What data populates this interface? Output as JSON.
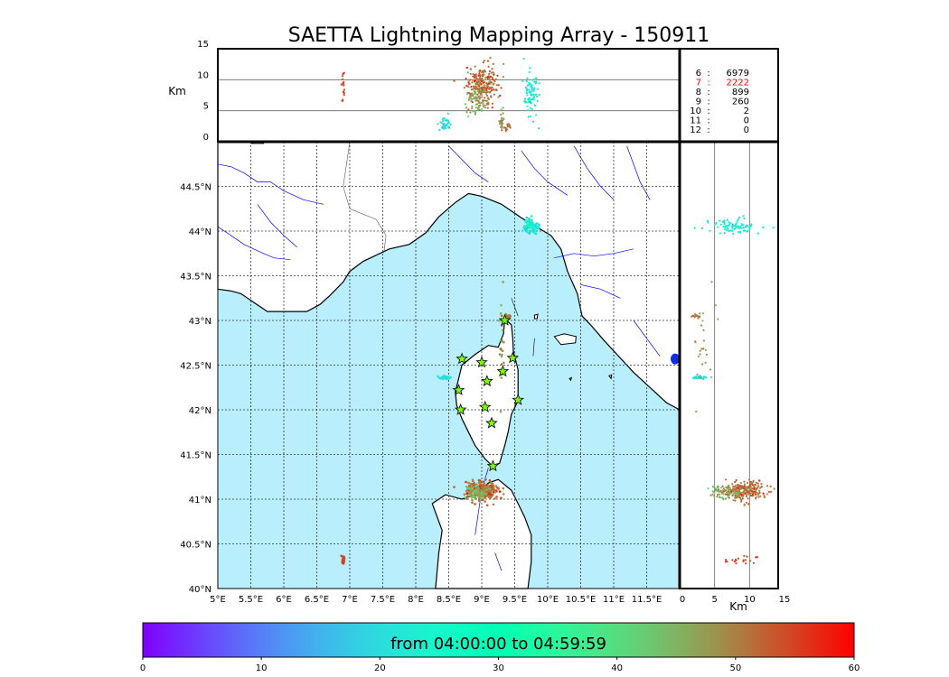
{
  "title": "SAETTA Lightning Mapping Array - 150911",
  "altitude_axis": {
    "label": "Km",
    "ticks": [
      "15",
      "10",
      "5",
      "0"
    ],
    "tick_values": [
      15,
      10,
      5,
      0
    ],
    "range": [
      0,
      15
    ]
  },
  "side_axis": {
    "label": "Km",
    "ticks": [
      "0",
      "5",
      "10",
      "15"
    ],
    "tick_values": [
      0,
      5,
      10,
      15
    ],
    "range": [
      0,
      15
    ]
  },
  "longitude_ticks": [
    "5°E",
    "5.5°E",
    "6°E",
    "6.5°E",
    "7°E",
    "7.5°E",
    "8°E",
    "8.5°E",
    "9°E",
    "9.5°E",
    "10°E",
    "10.5°E",
    "11°E",
    "11.5°E"
  ],
  "longitude_values": [
    5,
    5.5,
    6,
    6.5,
    7,
    7.5,
    8,
    8.5,
    9,
    9.5,
    10,
    10.5,
    11,
    11.5
  ],
  "latitude_ticks": [
    "44.5°N",
    "44°N",
    "43.5°N",
    "43°N",
    "42.5°N",
    "42°N",
    "41.5°N",
    "41°N",
    "40.5°N",
    "40°N"
  ],
  "latitude_values": [
    44.5,
    44,
    43.5,
    43,
    42.5,
    42,
    41.5,
    41,
    40.5,
    40
  ],
  "map_extent": {
    "lon": [
      5,
      12
    ],
    "lat": [
      40,
      45
    ]
  },
  "station_counts": [
    {
      "stations": "6",
      "sep": ":",
      "count": "6979",
      "color": "#000000"
    },
    {
      "stations": "7",
      "sep": ":",
      "count": "2222",
      "color": "#ff0000"
    },
    {
      "stations": "8",
      "sep": ":",
      "count": "899",
      "color": "#000000"
    },
    {
      "stations": "9",
      "sep": ":",
      "count": "260",
      "color": "#000000"
    },
    {
      "stations": "10",
      "sep": ":",
      "count": "2",
      "color": "#000000"
    },
    {
      "stations": "11",
      "sep": ":",
      "count": "0",
      "color": "#000000"
    },
    {
      "stations": "12",
      "sep": ":",
      "count": "0",
      "color": "#000000"
    }
  ],
  "colorbar": {
    "label": "from 04:00:00 to 04:59:59",
    "ticks": [
      "0",
      "10",
      "20",
      "30",
      "40",
      "50",
      "60"
    ],
    "tick_values": [
      0,
      10,
      20,
      30,
      40,
      50,
      60
    ],
    "range": [
      0,
      60
    ],
    "colormap": "rainbow"
  },
  "colors": {
    "sea": "#b9eefc",
    "land": "#ffffff",
    "rivers": "#0000ff",
    "coast": "#000000",
    "station_fill": "#7cfc00"
  },
  "lma_stations": [
    {
      "lon": 9.35,
      "lat": 43.0
    },
    {
      "lon": 8.7,
      "lat": 42.57
    },
    {
      "lon": 9.0,
      "lat": 42.53
    },
    {
      "lon": 9.47,
      "lat": 42.58
    },
    {
      "lon": 9.32,
      "lat": 42.43
    },
    {
      "lon": 9.08,
      "lat": 42.32
    },
    {
      "lon": 8.65,
      "lat": 42.22
    },
    {
      "lon": 9.55,
      "lat": 42.11
    },
    {
      "lon": 8.68,
      "lat": 42.0
    },
    {
      "lon": 9.05,
      "lat": 42.03
    },
    {
      "lon": 9.15,
      "lat": 41.85
    },
    {
      "lon": 9.17,
      "lat": 41.37
    }
  ],
  "lightning_clusters": [
    {
      "lon": 9.0,
      "lat": 41.1,
      "lon_spread": 0.12,
      "lat_spread": 0.05,
      "alt": 9.0,
      "alt_spread": 1.6,
      "time": 52,
      "time_spread": 3,
      "n": 260
    },
    {
      "lon": 8.95,
      "lat": 41.08,
      "lon_spread": 0.08,
      "lat_spread": 0.04,
      "alt": 6.5,
      "alt_spread": 1.2,
      "time": 46,
      "time_spread": 3,
      "n": 70
    },
    {
      "lon": 9.75,
      "lat": 44.05,
      "lon_spread": 0.05,
      "lat_spread": 0.04,
      "alt": 7.5,
      "alt_spread": 2.0,
      "time": 23,
      "time_spread": 6,
      "n": 90
    },
    {
      "lon": 8.45,
      "lat": 42.36,
      "lon_spread": 0.04,
      "lat_spread": 0.01,
      "alt": 2.8,
      "alt_spread": 0.6,
      "time": 20,
      "time_spread": 1,
      "n": 40
    },
    {
      "lon": 6.9,
      "lat": 40.32,
      "lon_spread": 0.01,
      "lat_spread": 0.02,
      "alt": 8.5,
      "alt_spread": 1.5,
      "time": 55,
      "time_spread": 1,
      "n": 20
    },
    {
      "lon": 9.3,
      "lat": 42.85,
      "lon_spread": 0.02,
      "lat_spread": 0.3,
      "alt": 3.5,
      "alt_spread": 1.0,
      "time": 48,
      "time_spread": 2,
      "n": 25
    },
    {
      "lon": 9.4,
      "lat": 43.05,
      "lon_spread": 0.02,
      "lat_spread": 0.01,
      "alt": 2.5,
      "alt_spread": 0.4,
      "time": 50,
      "time_spread": 2,
      "n": 15
    }
  ]
}
